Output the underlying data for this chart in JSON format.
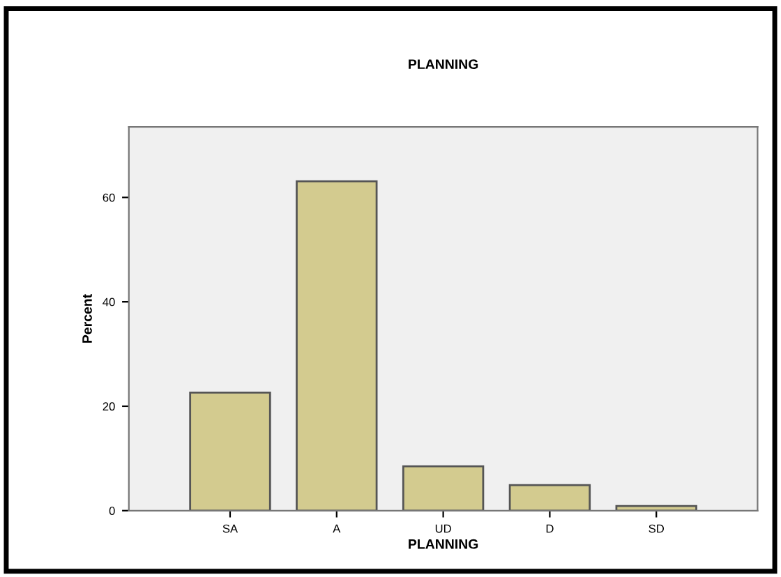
{
  "chart_data": {
    "type": "bar",
    "title": "PLANNING",
    "xlabel": "PLANNING",
    "ylabel": "Percent",
    "categories": [
      "SA",
      "A",
      "UD",
      "D",
      "SD"
    ],
    "values": [
      22.6,
      63.1,
      8.5,
      4.9,
      0.9
    ],
    "color": "#d3cb8f",
    "ylim": [
      0,
      73.5
    ],
    "yticks": [
      0,
      20,
      40,
      60
    ],
    "grid": false
  }
}
